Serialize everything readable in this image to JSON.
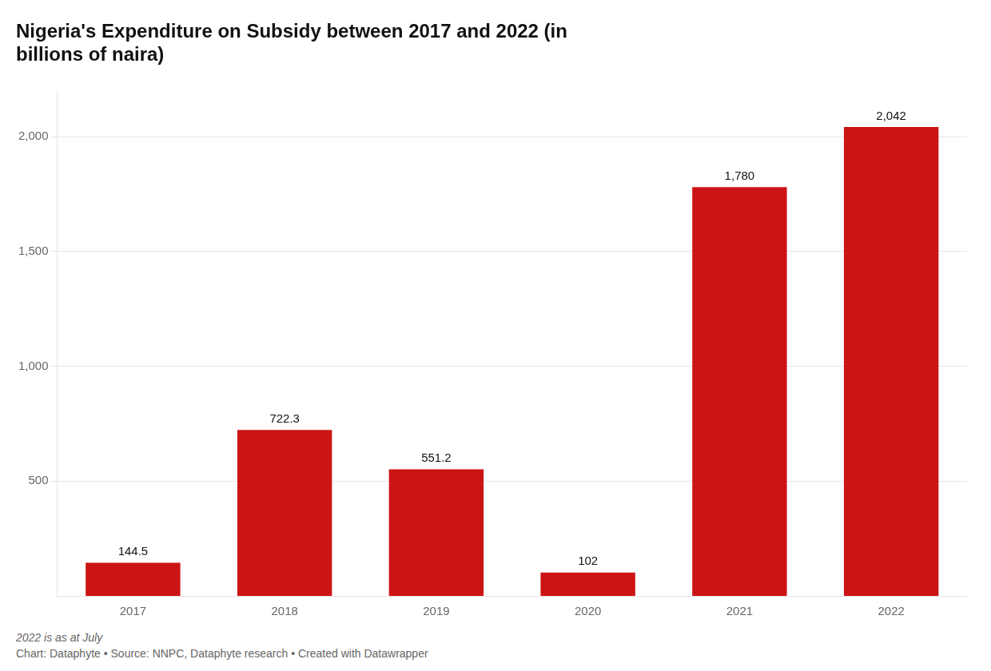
{
  "chart_data": {
    "type": "bar",
    "title": "Nigeria's Expenditure on Subsidy between 2017 and 2022 (in\nbillions of naira)",
    "categories": [
      "2017",
      "2018",
      "2019",
      "2020",
      "2021",
      "2022"
    ],
    "values": [
      144.5,
      722.3,
      551.2,
      102,
      1780,
      2042
    ],
    "value_labels": [
      "144.5",
      "722.3",
      "551.2",
      "102",
      "1,780",
      "2,042"
    ],
    "data_labels": true,
    "color": "#cc1414",
    "ylim": [
      0,
      2200
    ],
    "yticks": [
      500,
      {
        "value": 1000,
        "label": "1,000"
      },
      {
        "value": 1500,
        "label": "1,500"
      },
      {
        "value": 2000,
        "label": "2,000"
      }
    ],
    "grid": true,
    "annotations": [
      "2022 is as at July",
      "Chart: Dataphyte • Source: NNPC, Dataphyte research • Created with Datawrapper"
    ]
  }
}
